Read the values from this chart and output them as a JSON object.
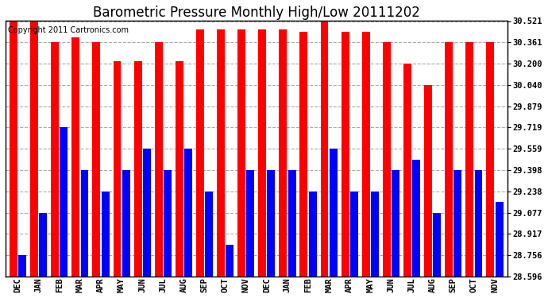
{
  "title": "Barometric Pressure Monthly High/Low 20111202",
  "copyright": "Copyright 2011 Cartronics.com",
  "months": [
    "DEC",
    "JAN",
    "FEB",
    "MAR",
    "APR",
    "MAY",
    "JUN",
    "JUL",
    "AUG",
    "SEP",
    "OCT",
    "NOV",
    "DEC",
    "JAN",
    "FEB",
    "MAR",
    "APR",
    "MAY",
    "JUN",
    "JUL",
    "AUG",
    "SEP",
    "OCT",
    "NOV"
  ],
  "highs": [
    30.521,
    30.521,
    30.361,
    30.401,
    30.361,
    30.22,
    30.22,
    30.361,
    30.22,
    30.461,
    30.461,
    30.461,
    30.461,
    30.461,
    30.44,
    30.521,
    30.44,
    30.44,
    30.361,
    30.2,
    30.04,
    30.361,
    30.361,
    30.361
  ],
  "lows": [
    28.756,
    29.077,
    29.719,
    29.398,
    29.238,
    29.398,
    29.559,
    29.398,
    29.559,
    29.238,
    28.835,
    29.398,
    29.398,
    29.398,
    29.238,
    29.559,
    29.238,
    29.238,
    29.398,
    29.477,
    29.077,
    29.398,
    29.398,
    29.157
  ],
  "high_color": "#FF0000",
  "low_color": "#0000FF",
  "bg_color": "#FFFFFF",
  "plot_bg_color": "#FFFFFF",
  "grid_color": "#AAAAAA",
  "y_ticks": [
    28.596,
    28.756,
    28.917,
    29.077,
    29.238,
    29.398,
    29.559,
    29.719,
    29.879,
    30.04,
    30.2,
    30.361,
    30.521
  ],
  "ymin": 28.596,
  "ymax": 30.521,
  "title_fontsize": 12,
  "tick_fontsize": 7.5,
  "copyright_fontsize": 7
}
